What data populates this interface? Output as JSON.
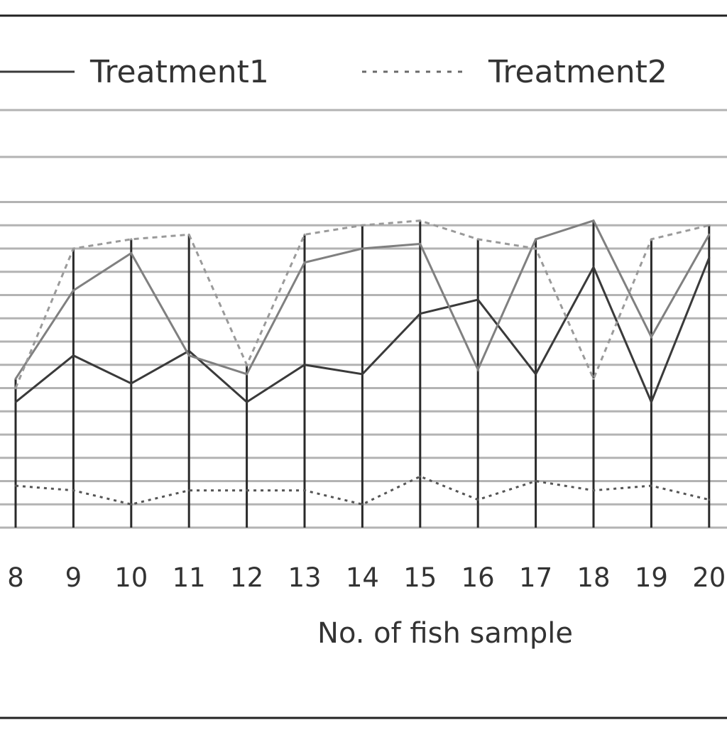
{
  "chart_data": {
    "type": "line",
    "title": "",
    "xlabel": "No. of fish sample",
    "ylabel": "",
    "categories": [
      "8",
      "9",
      "10",
      "11",
      "12",
      "13",
      "14",
      "15",
      "16",
      "17",
      "18",
      "19",
      "20"
    ],
    "ylim": [
      0,
      7
    ],
    "grid": true,
    "legend": {
      "placement": "top",
      "entries": [
        {
          "label": "Treatment1",
          "style": "solid"
        },
        {
          "label": "Treatment2",
          "style": "dashed"
        }
      ]
    },
    "series": [
      {
        "name": "Treatment1",
        "style": "solid",
        "values": [
          2.7,
          3.7,
          3.1,
          3.8,
          2.7,
          3.5,
          3.3,
          4.6,
          4.9,
          3.3,
          5.6,
          2.7,
          5.8
        ]
      },
      {
        "name": "Treatment2",
        "style": "dashed",
        "values": [
          0.9,
          0.8,
          0.5,
          0.8,
          0.8,
          0.8,
          0.5,
          1.1,
          0.6,
          1.0,
          0.8,
          0.9,
          0.6
        ]
      },
      {
        "name": "",
        "style": "solid-gray",
        "values": [
          3.2,
          5.1,
          5.9,
          3.7,
          3.3,
          5.7,
          6.0,
          6.1,
          3.4,
          6.2,
          6.6,
          4.1,
          6.3
        ]
      },
      {
        "name": "",
        "style": "dashed-gray",
        "values": [
          3.0,
          6.0,
          6.2,
          6.3,
          3.5,
          6.3,
          6.5,
          6.6,
          6.2,
          6.0,
          3.2,
          6.2,
          6.5
        ]
      }
    ]
  }
}
